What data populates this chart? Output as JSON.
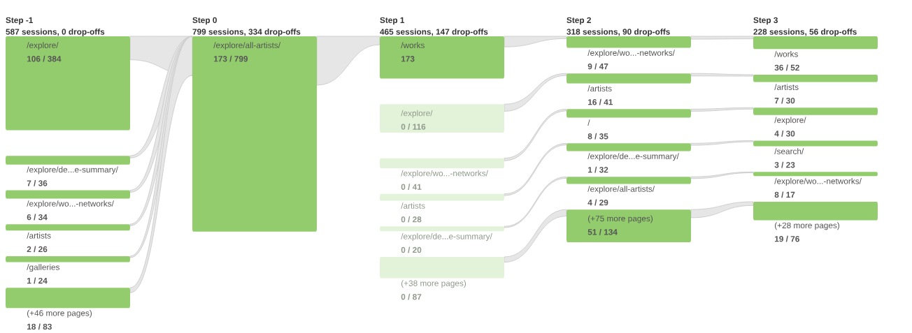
{
  "chart_data": [
    {
      "type": "other",
      "title": "Step -1",
      "subtitle": "587 sessions, 0 drop-offs",
      "categories": [
        "/explore/",
        "/explore/de...e-summary/",
        "/explore/wo...-networks/",
        "/artists",
        "/galleries",
        "(+46 more pages)"
      ],
      "values": [
        384,
        36,
        34,
        26,
        24,
        83
      ],
      "value_labels": [
        "106 / 384",
        "7 / 36",
        "6 / 34",
        "2 / 26",
        "1 / 24",
        "18 / 83"
      ],
      "colors": [
        "#92cc6c",
        "#92cc6c",
        "#92cc6c",
        "#92cc6c",
        "#92cc6c",
        "#92cc6c"
      ]
    },
    {
      "type": "other",
      "title": "Step 0",
      "subtitle": "799 sessions, 334 drop-offs",
      "categories": [
        "/explore/all-artists/"
      ],
      "values": [
        799
      ],
      "value_labels": [
        "173 / 799"
      ],
      "colors": [
        "#92cc6c"
      ]
    },
    {
      "type": "other",
      "title": "Step 1",
      "subtitle": "465 sessions, 147 drop-offs",
      "categories": [
        "/works",
        "/explore/",
        "/explore/wo...-networks/",
        "/artists",
        "/explore/de...e-summary/",
        "(+38 more pages)"
      ],
      "values": [
        173,
        116,
        41,
        28,
        20,
        87
      ],
      "value_labels": [
        "173",
        "0 / 116",
        "0 / 41",
        "0 / 28",
        "0 / 20",
        "0 / 87"
      ],
      "colors": [
        "#92cc6c",
        "#e3f3da",
        "#e3f3da",
        "#e3f3da",
        "#e3f3da",
        "#e3f3da"
      ]
    },
    {
      "type": "other",
      "title": "Step 2",
      "subtitle": "318 sessions, 90 drop-offs",
      "categories": [
        "/explore/wo...-networks/",
        "/artists",
        "/",
        "/explore/de...e-summary/",
        "/explore/all-artists/",
        "(+75 more pages)"
      ],
      "values": [
        47,
        41,
        35,
        32,
        29,
        134
      ],
      "value_labels": [
        "9 / 47",
        "16 / 41",
        "8 / 35",
        "1 / 32",
        "4 / 29",
        "51 / 134"
      ],
      "colors": [
        "#92cc6c",
        "#92cc6c",
        "#92cc6c",
        "#92cc6c",
        "#92cc6c",
        "#92cc6c"
      ]
    },
    {
      "type": "other",
      "title": "Step 3",
      "subtitle": "228 sessions, 56 drop-offs",
      "categories": [
        "/works",
        "/artists",
        "/explore/",
        "/search/",
        "/explore/wo...-networks/",
        "(+28 more pages)"
      ],
      "values": [
        52,
        30,
        30,
        23,
        17,
        76
      ],
      "value_labels": [
        "36 / 52",
        "7 / 30",
        "4 / 30",
        "3 / 23",
        "8 / 17",
        "19 / 76"
      ],
      "colors": [
        "#92cc6c",
        "#92cc6c",
        "#92cc6c",
        "#92cc6c",
        "#92cc6c",
        "#92cc6c"
      ]
    }
  ]
}
